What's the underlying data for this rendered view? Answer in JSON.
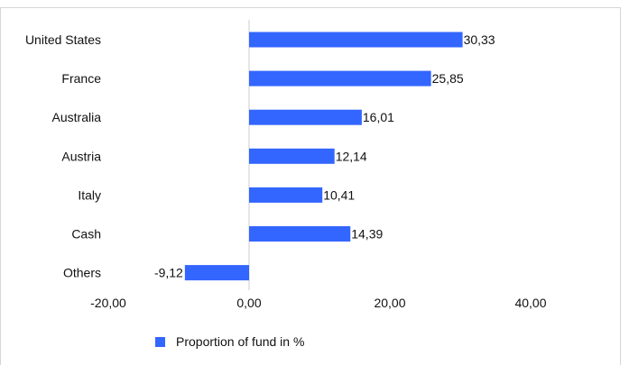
{
  "title_fragment": "",
  "chart_data": {
    "type": "bar",
    "orientation": "horizontal",
    "categories": [
      "United States",
      "France",
      "Australia",
      "Austria",
      "Italy",
      "Cash",
      "Others"
    ],
    "series": [
      {
        "name": "Proportion of fund in %",
        "values": [
          30.33,
          25.85,
          16.01,
          12.14,
          10.41,
          14.39,
          -9.12
        ]
      }
    ],
    "value_labels": [
      "30,33",
      "25,85",
      "16,01",
      "12,14",
      "10,41",
      "14,39",
      "-9,12"
    ],
    "xlim": [
      -20,
      40
    ],
    "xticks": [
      -20,
      0,
      20,
      40
    ],
    "xtick_labels": [
      "-20,00",
      "0,00",
      "20,00",
      "40,00"
    ],
    "bar_color": "#3366ff",
    "zero_line_color": "#cccccc",
    "grid": false,
    "legend_position": "bottom"
  }
}
